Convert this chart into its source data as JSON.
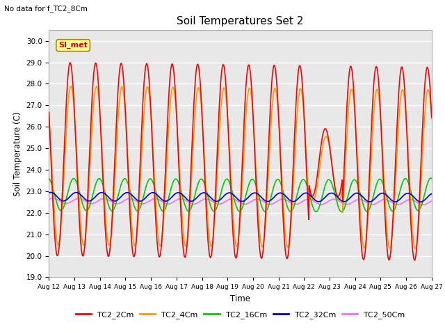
{
  "title": "Soil Temperatures Set 2",
  "subtitle": "No data for f_TC2_8Cm",
  "xlabel": "Time",
  "ylabel": "Soil Temperature (C)",
  "ylim": [
    19.0,
    30.5
  ],
  "yticks": [
    19.0,
    20.0,
    21.0,
    22.0,
    23.0,
    24.0,
    25.0,
    26.0,
    27.0,
    28.0,
    29.0,
    30.0
  ],
  "fig_bg": "#ffffff",
  "plot_bg": "#e8e8e8",
  "grid_color": "#ffffff",
  "series": {
    "TC2_2Cm": {
      "color": "#ff0000",
      "lw": 1.2
    },
    "TC2_4Cm": {
      "color": "#ff9900",
      "lw": 1.2
    },
    "TC2_16Cm": {
      "color": "#00cc00",
      "lw": 1.2
    },
    "TC2_32Cm": {
      "color": "#0000cc",
      "lw": 1.2
    },
    "TC2_50Cm": {
      "color": "#ff66ff",
      "lw": 1.2
    }
  },
  "legend_label": "SI_met",
  "legend_color": "#cc0000",
  "legend_bg": "#ffff99",
  "legend_border": "#aa8800",
  "n_days": 15,
  "start_day": 12
}
